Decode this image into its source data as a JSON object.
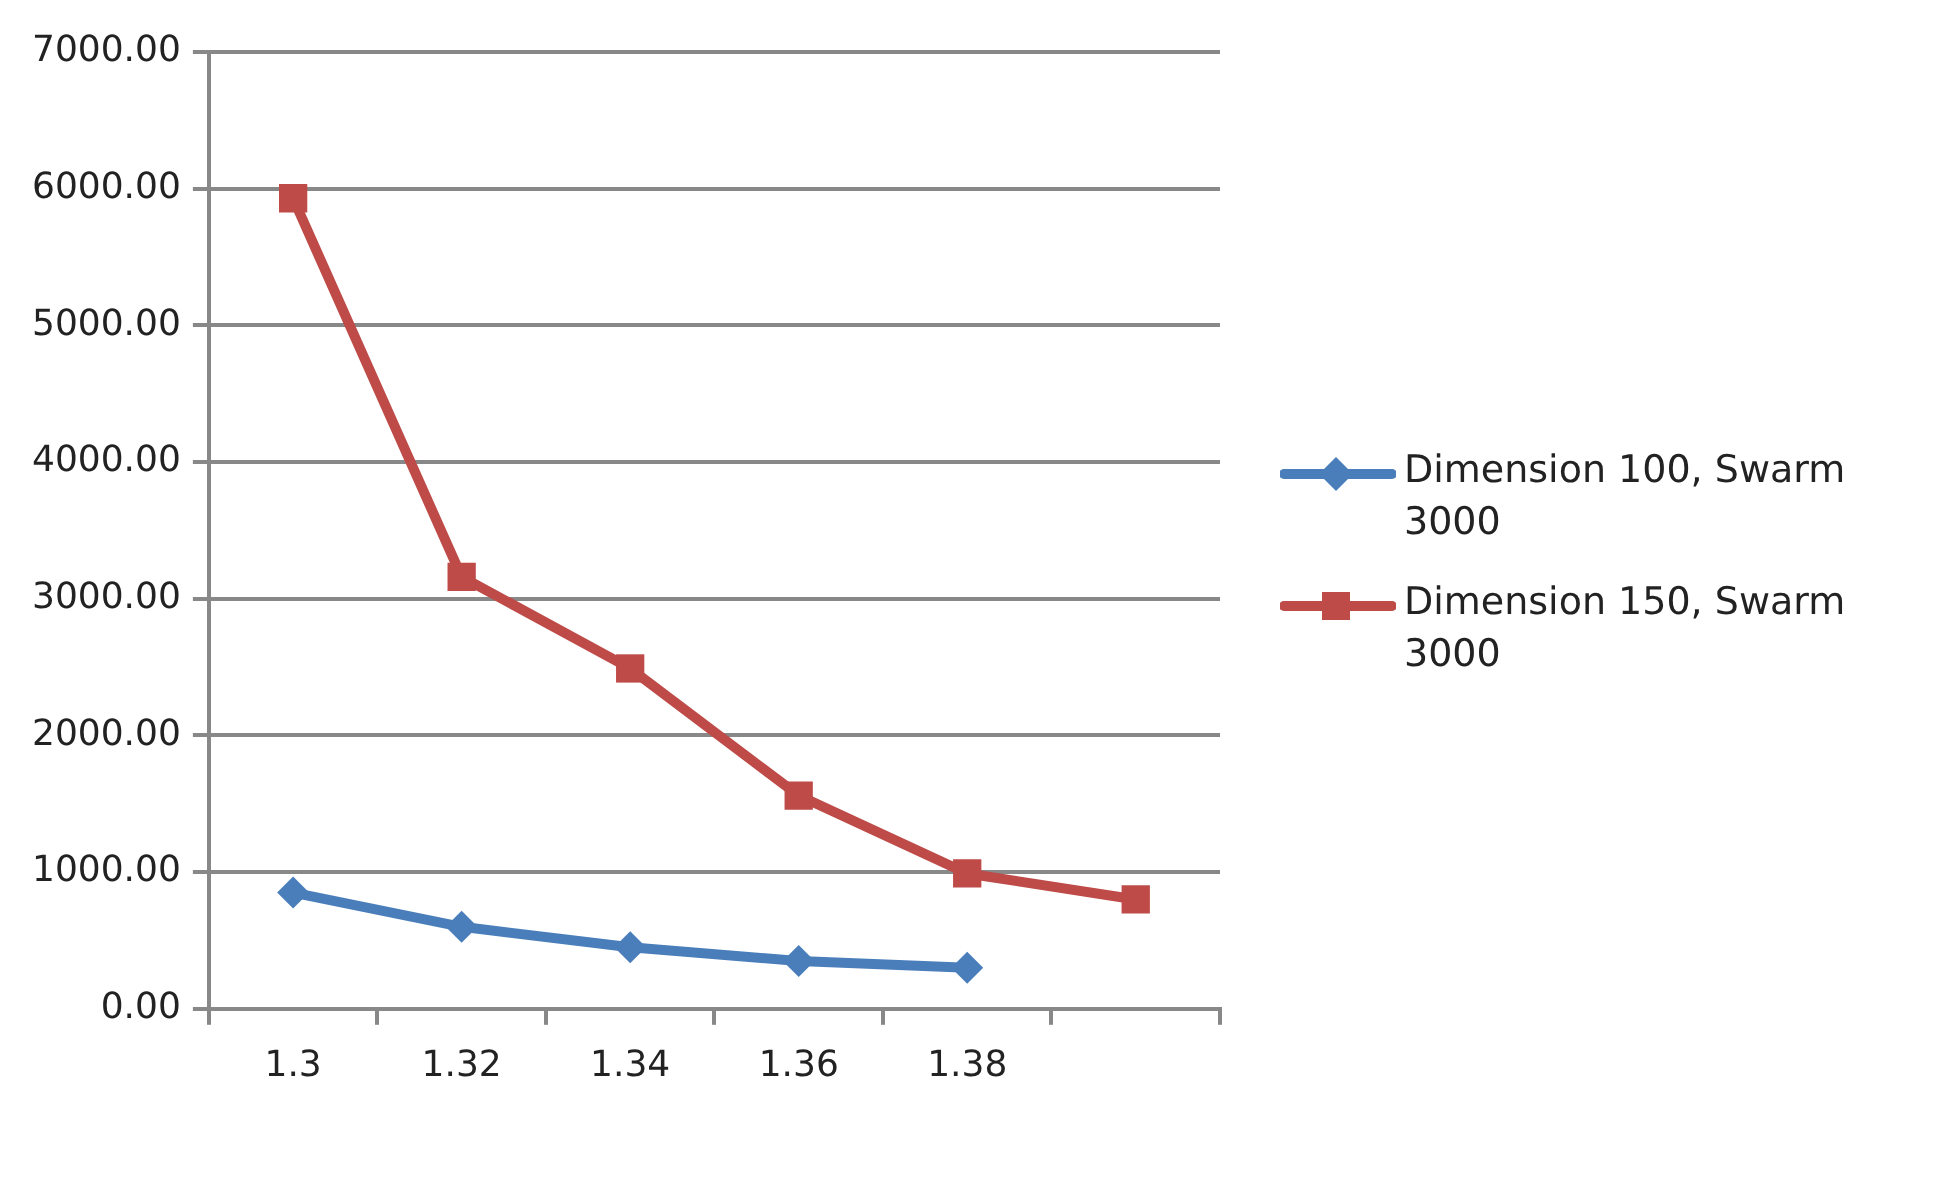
{
  "chart_data": {
    "type": "line",
    "categories": [
      "1.3",
      "1.32",
      "1.34",
      "1.36",
      "1.38",
      null
    ],
    "series": [
      {
        "name": "Dimension 100, Swarm 3000",
        "color": "#4a7ebb",
        "marker": "diamond",
        "values": [
          850,
          600,
          450,
          350,
          300,
          null
        ]
      },
      {
        "name": "Dimension 150, Swarm 3000",
        "color": "#be4b48",
        "marker": "square",
        "values": [
          5930,
          3160,
          2490,
          1560,
          990,
          800
        ]
      }
    ],
    "ylim": [
      0,
      7000
    ],
    "yticks": [
      {
        "value": 0,
        "label": "0.00"
      },
      {
        "value": 1000,
        "label": "1000.00"
      },
      {
        "value": 2000,
        "label": "2000.00"
      },
      {
        "value": 3000,
        "label": "3000.00"
      },
      {
        "value": 4000,
        "label": "4000.00"
      },
      {
        "value": 5000,
        "label": "5000.00"
      },
      {
        "value": 6000,
        "label": "6000.00"
      },
      {
        "value": 7000,
        "label": "7000.00"
      }
    ],
    "grid": "y",
    "legend": "right",
    "line_style": "solid"
  }
}
